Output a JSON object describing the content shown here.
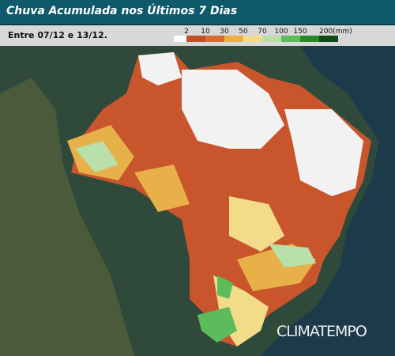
{
  "header": {
    "title": "Chuva Acumulada nos Últimos 7 Dias",
    "period": "Entre 07/12 e 13/12."
  },
  "legend": {
    "items": [
      {
        "label": "2",
        "color": "#c0502a"
      },
      {
        "label": "10",
        "color": "#d86a34"
      },
      {
        "label": "30",
        "color": "#e8b048"
      },
      {
        "label": "50",
        "color": "#f2dc8a"
      },
      {
        "label": "70",
        "color": "#b8e0a8"
      },
      {
        "label": "100",
        "color": "#5cbc5c"
      },
      {
        "label": "150",
        "color": "#2a8a2a"
      },
      {
        "label": "200(mm)",
        "color": "#0e4a14"
      }
    ]
  },
  "watermark": "CLIMATEMPO"
}
